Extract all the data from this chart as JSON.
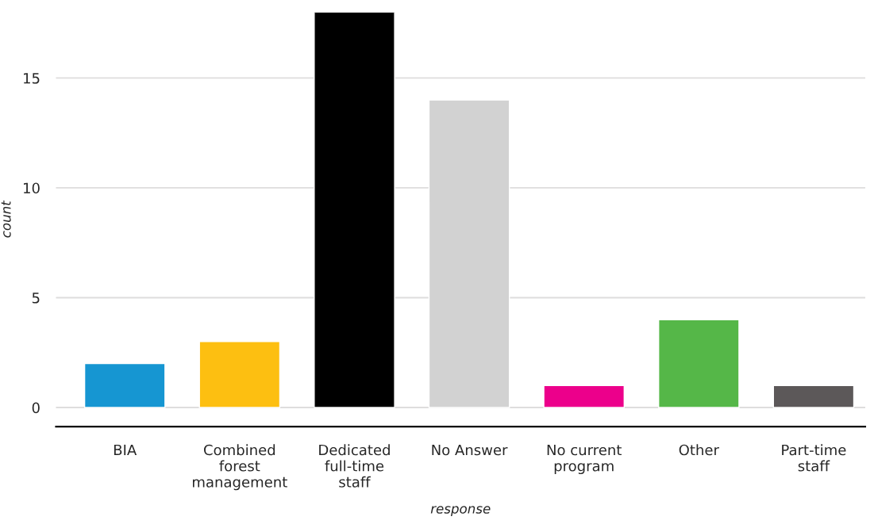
{
  "chart_data": {
    "type": "bar",
    "xlabel": "response",
    "ylabel": "count",
    "categories": [
      "BIA",
      "Combined\nforest\nmanagement",
      "Dedicated\nfull-time\nstaff",
      "No Answer",
      "No current\nprogram",
      "Other",
      "Part-time\nstaff"
    ],
    "values": [
      2,
      3,
      18,
      14,
      1,
      4,
      1
    ],
    "colors": [
      "#1696d2",
      "#fdbf11",
      "#000000",
      "#d2d2d2",
      "#ec008b",
      "#55b748",
      "#5c5859"
    ],
    "ylim": [
      -0.87,
      18
    ],
    "yticks": [
      0,
      5,
      10,
      15
    ],
    "grid": "y",
    "legend": false
  }
}
